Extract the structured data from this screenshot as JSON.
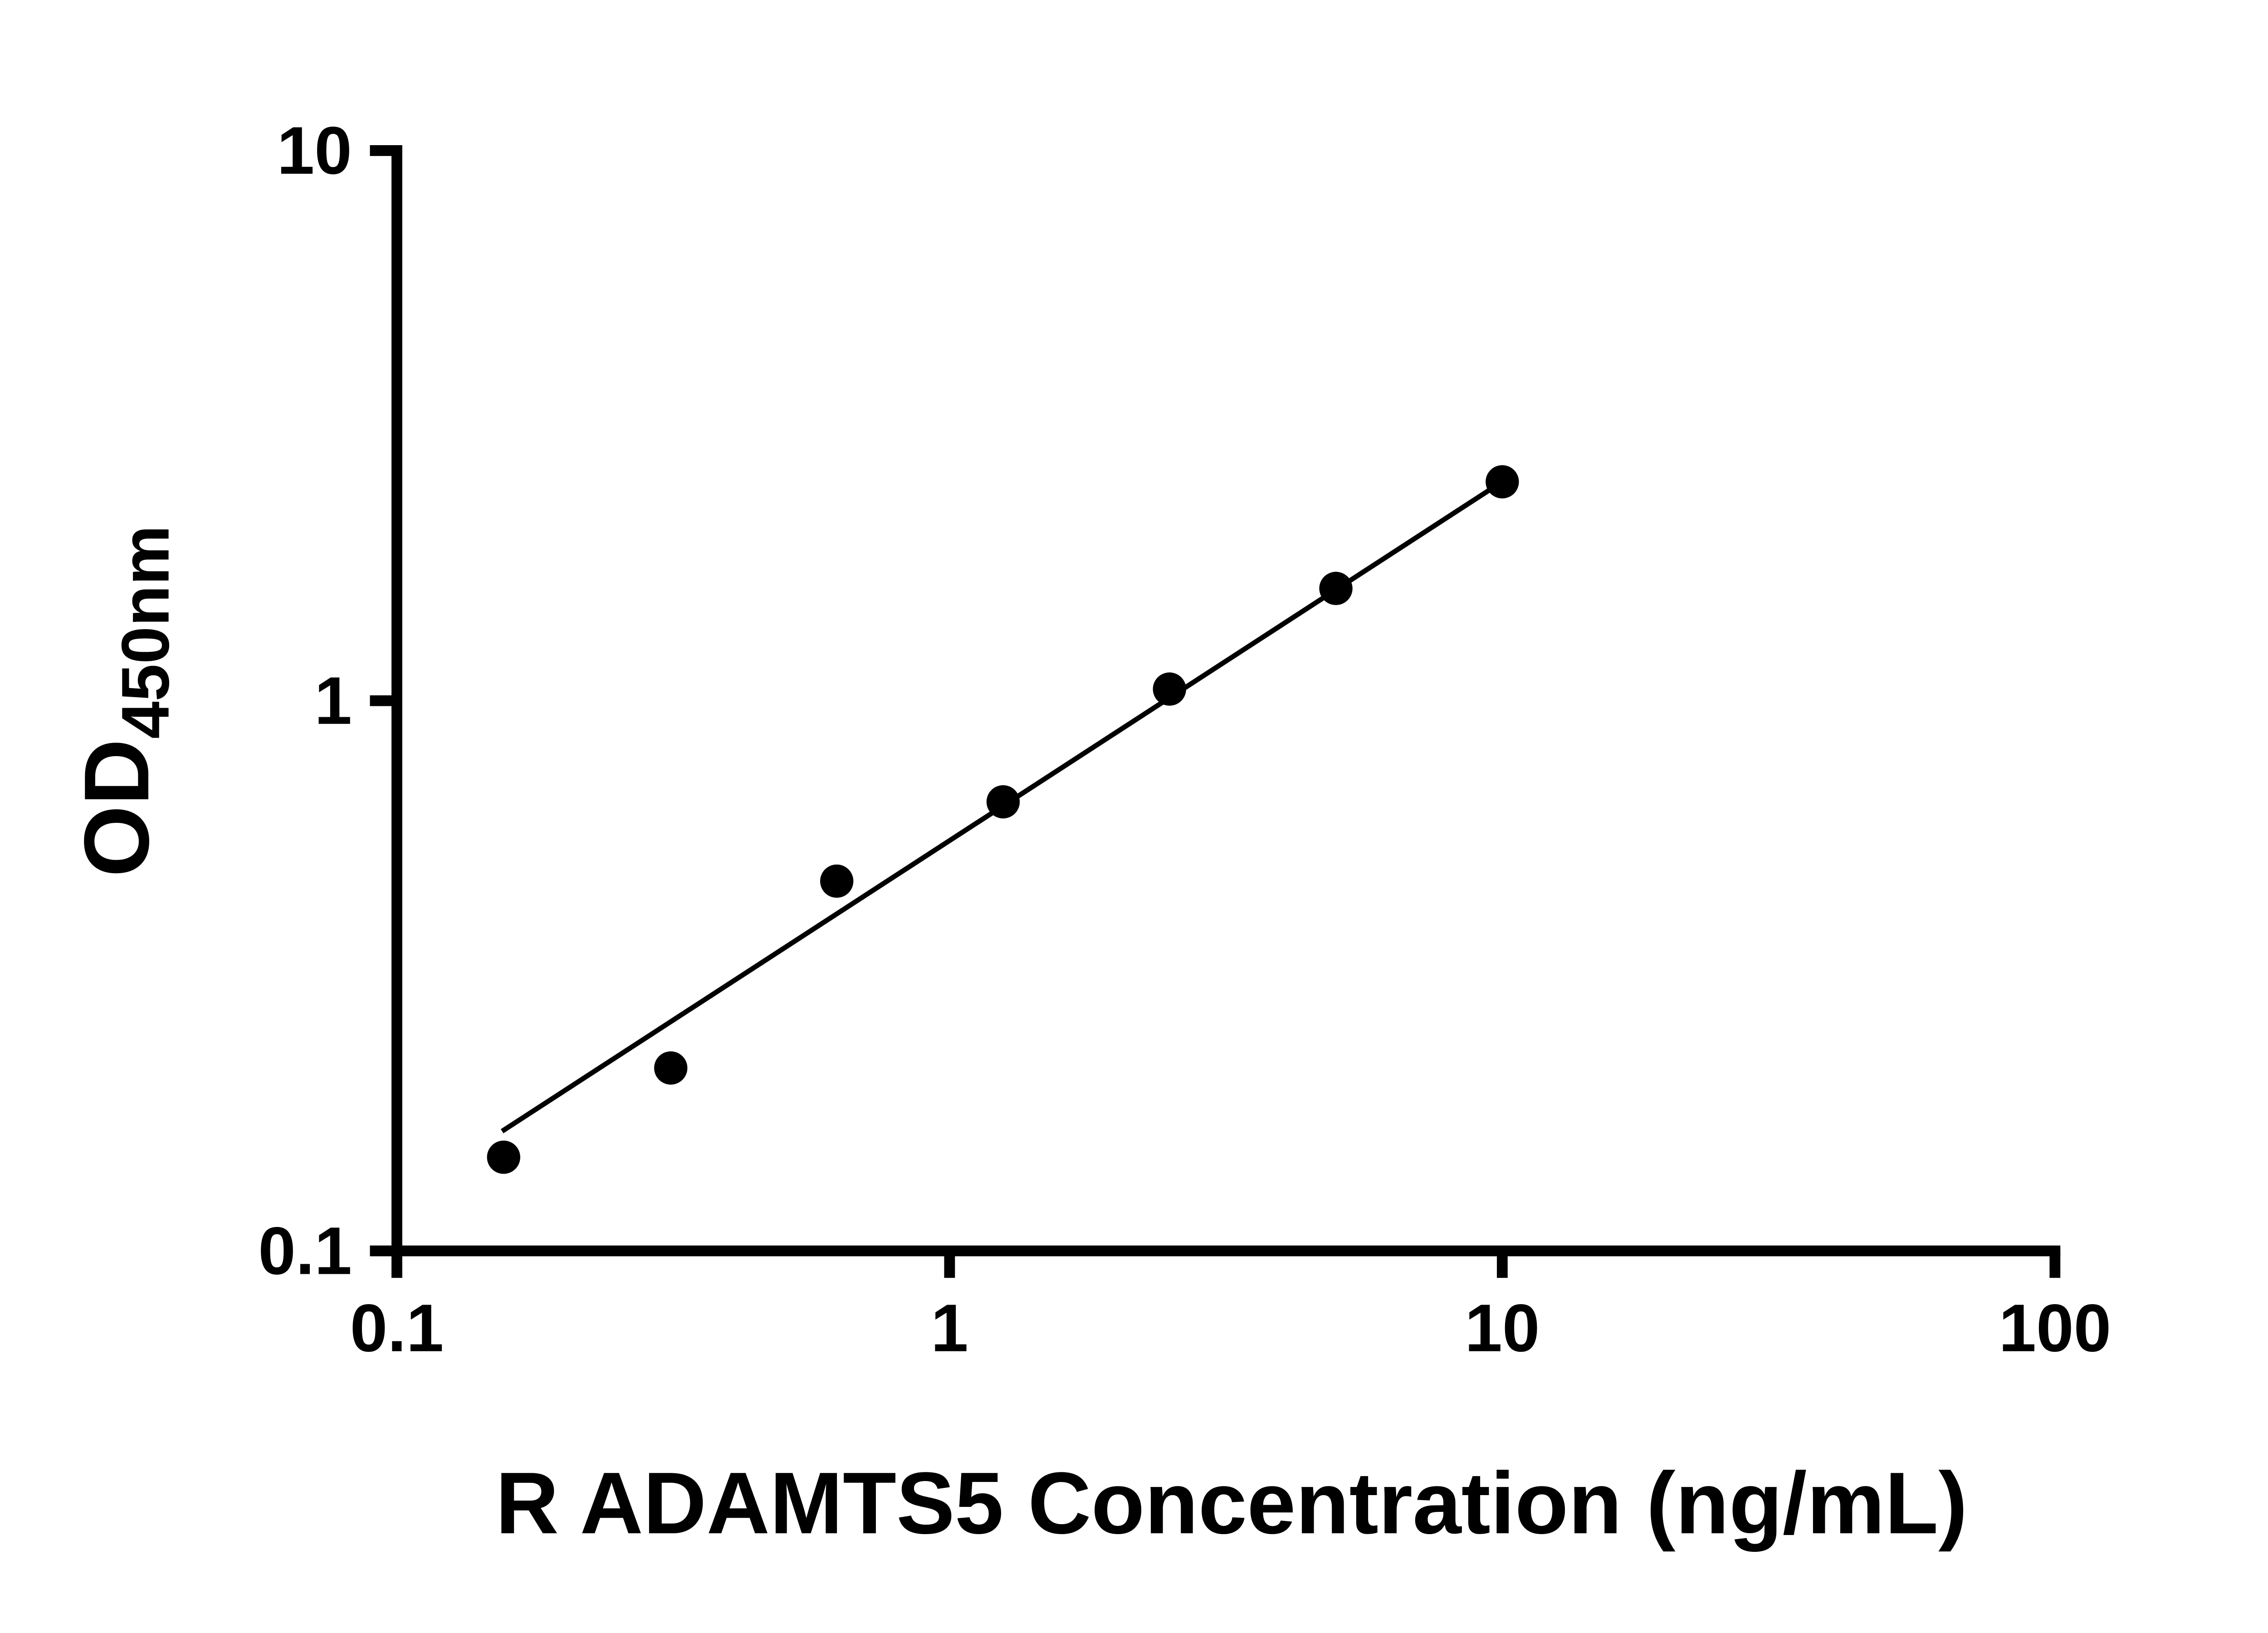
{
  "page": {
    "background": "#ffffff"
  },
  "chart_data": {
    "type": "scatter",
    "title": "",
    "xlabel": "R ADAMTS5 Concentration (ng/mL)",
    "ylabel_main": "OD",
    "ylabel_sub": "450nm",
    "x_scale": "log",
    "y_scale": "log",
    "xlim": [
      0.1,
      100
    ],
    "ylim": [
      0.1,
      10
    ],
    "grid": false,
    "legend": "none",
    "x_ticks": [
      {
        "value": 0.1,
        "label": "0.1"
      },
      {
        "value": 1,
        "label": "1"
      },
      {
        "value": 10,
        "label": "10"
      },
      {
        "value": 100,
        "label": "100"
      }
    ],
    "y_ticks": [
      {
        "value": 0.1,
        "label": "0.1"
      },
      {
        "value": 1,
        "label": "1"
      },
      {
        "value": 10,
        "label": "10"
      }
    ],
    "series": [
      {
        "name": "standard-curve-points",
        "marker": "circle",
        "color": "#000000",
        "points": [
          {
            "x": 0.156,
            "y": 0.148
          },
          {
            "x": 0.313,
            "y": 0.215
          },
          {
            "x": 0.625,
            "y": 0.47
          },
          {
            "x": 1.25,
            "y": 0.655
          },
          {
            "x": 2.5,
            "y": 1.05
          },
          {
            "x": 5,
            "y": 1.6
          },
          {
            "x": 10,
            "y": 2.5
          }
        ]
      }
    ],
    "trend_line": {
      "x1": 0.155,
      "y1": 0.165,
      "x2": 10.3,
      "y2": 2.55,
      "color": "#000000"
    },
    "colors": {
      "axis": "#000000",
      "marker": "#000000",
      "line": "#000000",
      "background": "#ffffff"
    }
  }
}
